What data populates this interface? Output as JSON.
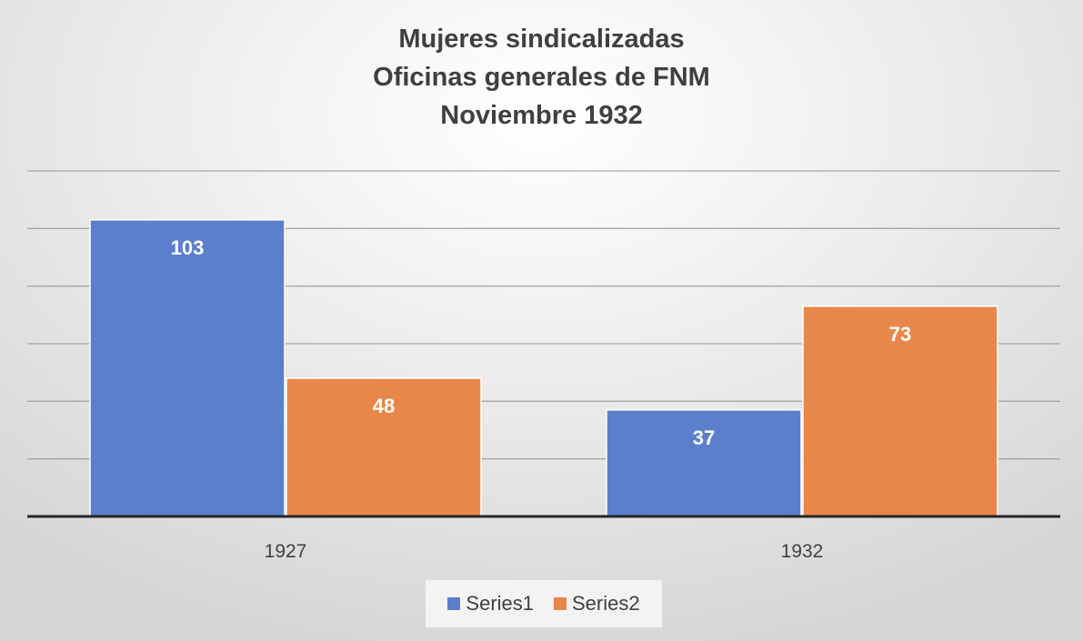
{
  "chart_data": {
    "type": "bar",
    "title_lines": [
      "Mujeres sindicalizadas",
      "Oficinas generales de FNM",
      "Noviembre 1932"
    ],
    "categories": [
      "1927",
      "1932"
    ],
    "series": [
      {
        "name": "Series1",
        "values": [
          103,
          37
        ],
        "color": "#5b7fcb"
      },
      {
        "name": "Series2",
        "values": [
          48,
          73
        ],
        "color": "#e8874a"
      }
    ],
    "ylim": [
      0,
      120
    ],
    "grid": true,
    "legend": "bottom",
    "data_labels": true
  }
}
